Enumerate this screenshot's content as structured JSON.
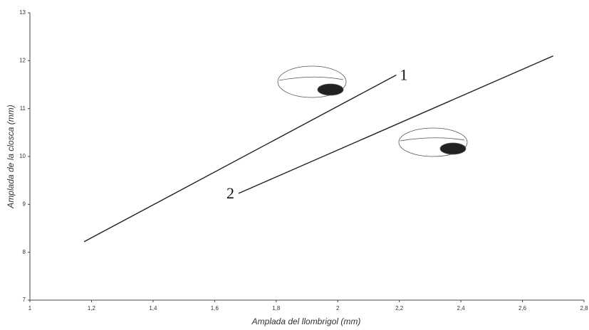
{
  "chart_data": {
    "type": "line",
    "x_label": "Amplada del llombrigol (mm)",
    "y_label": "Amplada de la closca (mm)",
    "series": [
      {
        "name": "1",
        "color": "#222222",
        "x": [
          1.176,
          2.19
        ],
        "values": [
          8.22,
          11.7
        ]
      },
      {
        "name": "2",
        "color": "#222222",
        "x": [
          1.678,
          2.7
        ],
        "values": [
          9.23,
          12.1
        ]
      }
    ],
    "xlim": [
      1,
      2.8
    ],
    "xticks": [
      1,
      {
        "value": 1.2,
        "label": "1,2"
      },
      {
        "value": 1.4,
        "label": "1,4"
      },
      {
        "value": 1.6,
        "label": "1,6"
      },
      {
        "value": 1.8,
        "label": "1,8"
      },
      2,
      {
        "value": 2.2,
        "label": "2,2"
      },
      {
        "value": 2.4,
        "label": "2,4"
      },
      {
        "value": 2.6,
        "label": "2,6"
      },
      {
        "value": 2.8,
        "label": "2,8"
      }
    ],
    "ylim": [
      7,
      13
    ],
    "yticks": [
      7,
      8,
      9,
      10,
      11,
      12,
      13
    ],
    "grid": false
  }
}
